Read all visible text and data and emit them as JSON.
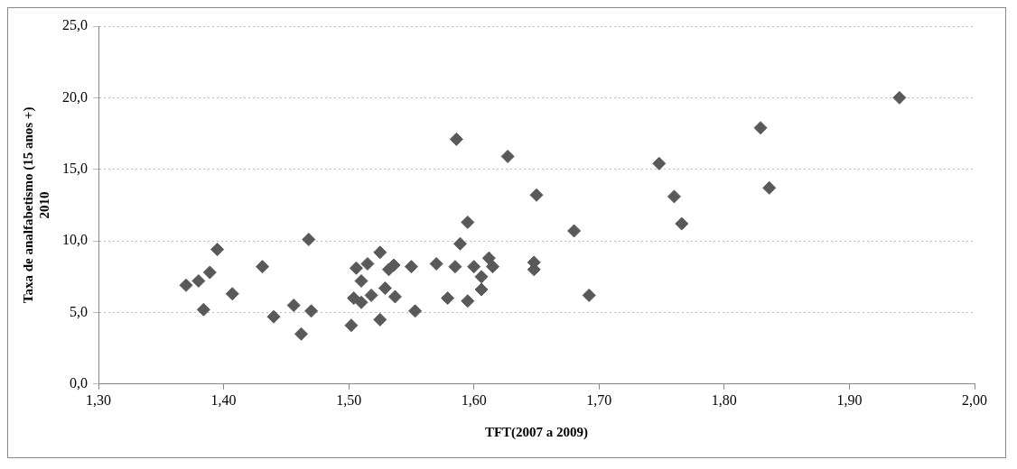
{
  "chart_data": {
    "type": "scatter",
    "xlabel": "TFT(2007 a 2009)",
    "ylabel": "Taxa de analfabetismo (15 anos +) 2010",
    "series": [
      {
        "color": "#595959",
        "x": [
          1.37,
          1.38,
          1.389,
          1.395,
          1.384,
          1.407,
          1.431,
          1.468,
          1.44,
          1.456,
          1.47,
          1.462,
          1.506,
          1.515,
          1.525,
          1.51,
          1.532,
          1.536,
          1.55,
          1.529,
          1.537,
          1.504,
          1.51,
          1.518,
          1.502,
          1.525,
          1.553,
          1.57,
          1.579,
          1.585,
          1.6,
          1.612,
          1.615,
          1.606,
          1.606,
          1.595,
          1.589,
          1.595,
          1.586,
          1.627,
          1.65,
          1.68,
          1.648,
          1.648,
          1.692,
          1.748,
          1.76,
          1.766,
          1.829,
          1.836,
          1.94
        ],
        "values": [
          6.9,
          7.2,
          7.8,
          9.4,
          5.2,
          6.3,
          8.2,
          10.1,
          4.7,
          5.5,
          5.1,
          3.5,
          8.1,
          8.4,
          9.2,
          7.2,
          8.0,
          8.3,
          8.2,
          6.7,
          6.1,
          6.0,
          5.7,
          6.2,
          4.1,
          4.5,
          5.1,
          8.4,
          6.0,
          8.2,
          8.2,
          8.8,
          8.2,
          7.5,
          6.6,
          5.8,
          9.8,
          11.3,
          17.1,
          15.9,
          13.2,
          10.7,
          8.5,
          8.0,
          6.2,
          15.4,
          13.1,
          11.2,
          17.9,
          13.7,
          20.0
        ]
      }
    ],
    "xlim": [
      1.3,
      2.0
    ],
    "xticks": [
      {
        "value": 1.3,
        "label": "1,30"
      },
      {
        "value": 1.4,
        "label": "1,40"
      },
      {
        "value": 1.5,
        "label": "1,50"
      },
      {
        "value": 1.6,
        "label": "1,60"
      },
      {
        "value": 1.7,
        "label": "1,70"
      },
      {
        "value": 1.8,
        "label": "1,80"
      },
      {
        "value": 1.9,
        "label": "1,90"
      },
      {
        "value": 2.0,
        "label": "2,00"
      }
    ],
    "ylim": [
      0,
      25
    ],
    "yticks": [
      {
        "value": 0,
        "label": "0,0"
      },
      {
        "value": 5,
        "label": "5,0"
      },
      {
        "value": 10,
        "label": "10,0"
      },
      {
        "value": 15,
        "label": "15,0"
      },
      {
        "value": 20,
        "label": "20,0"
      },
      {
        "value": 25,
        "label": "25,0"
      }
    ],
    "grid": "y",
    "marker": "diamond",
    "legend": false
  }
}
